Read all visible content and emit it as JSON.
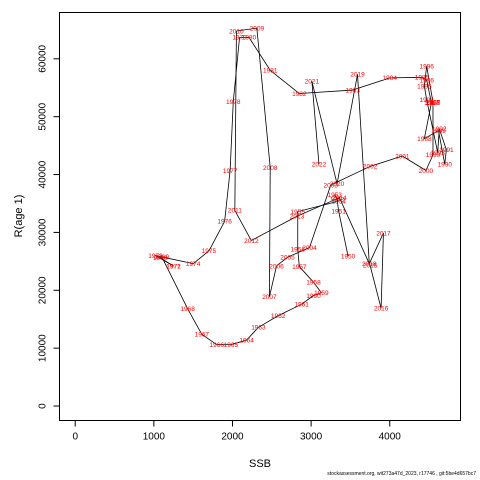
{
  "chart_data": {
    "type": "line",
    "xlabel": "SSB",
    "ylabel": "R(age 1)",
    "xlim": [
      -200,
      4900
    ],
    "ylim": [
      -2500,
      68000
    ],
    "xticks": [
      0,
      1000,
      2000,
      3000,
      4000
    ],
    "yticks": [
      0,
      10000,
      20000,
      30000,
      40000,
      50000,
      60000
    ],
    "grid": false,
    "point_labels_color": "#ff0000",
    "line_color": "#000000",
    "points": [
      {
        "label": "1950",
        "x": 3470,
        "y": 25900
      },
      {
        "label": "1951",
        "x": 3350,
        "y": 33700
      },
      {
        "label": "1952",
        "x": 3330,
        "y": 35700
      },
      {
        "label": "1953",
        "x": 3300,
        "y": 36500
      },
      {
        "label": "1954",
        "x": 3350,
        "y": 35400
      },
      {
        "label": "1955",
        "x": 2830,
        "y": 33600
      },
      {
        "label": "1956",
        "x": 2830,
        "y": 27100
      },
      {
        "label": "1957",
        "x": 2850,
        "y": 24100
      },
      {
        "label": "1958",
        "x": 3030,
        "y": 21400
      },
      {
        "label": "1959",
        "x": 3130,
        "y": 19600
      },
      {
        "label": "1960",
        "x": 3030,
        "y": 19100
      },
      {
        "label": "1961",
        "x": 2880,
        "y": 17600
      },
      {
        "label": "1962",
        "x": 2580,
        "y": 15600
      },
      {
        "label": "1963",
        "x": 2330,
        "y": 13600
      },
      {
        "label": "1964",
        "x": 2180,
        "y": 11400
      },
      {
        "label": "1965",
        "x": 1980,
        "y": 10600
      },
      {
        "label": "1966",
        "x": 1800,
        "y": 10600
      },
      {
        "label": "1967",
        "x": 1610,
        "y": 12400
      },
      {
        "label": "1968",
        "x": 1430,
        "y": 16800
      },
      {
        "label": "1969",
        "x": 1100,
        "y": 25800
      },
      {
        "label": "1970",
        "x": 1080,
        "y": 25600
      },
      {
        "label": "1971",
        "x": 1250,
        "y": 24200
      },
      {
        "label": "1972",
        "x": 1250,
        "y": 24200
      },
      {
        "label": "1973",
        "x": 1020,
        "y": 26000
      },
      {
        "label": "1974",
        "x": 1500,
        "y": 24600
      },
      {
        "label": "1975",
        "x": 1700,
        "y": 26800
      },
      {
        "label": "1976",
        "x": 1900,
        "y": 31900
      },
      {
        "label": "1977",
        "x": 1970,
        "y": 40700
      },
      {
        "label": "1978",
        "x": 2010,
        "y": 52600
      },
      {
        "label": "1979",
        "x": 2090,
        "y": 63700
      },
      {
        "label": "1980",
        "x": 2210,
        "y": 63700
      },
      {
        "label": "1981",
        "x": 2480,
        "y": 58000
      },
      {
        "label": "1982",
        "x": 2850,
        "y": 54000
      },
      {
        "label": "1983",
        "x": 3530,
        "y": 54600
      },
      {
        "label": "1984",
        "x": 4000,
        "y": 56700
      },
      {
        "label": "1985",
        "x": 4410,
        "y": 56800
      },
      {
        "label": "1986",
        "x": 4470,
        "y": 56300
      },
      {
        "label": "1987",
        "x": 4530,
        "y": 52400
      },
      {
        "label": "1988",
        "x": 4440,
        "y": 46200
      },
      {
        "label": "1989",
        "x": 4620,
        "y": 47600
      },
      {
        "label": "1990",
        "x": 4700,
        "y": 41800
      },
      {
        "label": "1991",
        "x": 4720,
        "y": 44300
      },
      {
        "label": "1992",
        "x": 4630,
        "y": 47900
      },
      {
        "label": "1993",
        "x": 4610,
        "y": 43800
      },
      {
        "label": "1994",
        "x": 4470,
        "y": 52900
      },
      {
        "label": "1995",
        "x": 4440,
        "y": 55300
      },
      {
        "label": "1996",
        "x": 4470,
        "y": 58700
      },
      {
        "label": "1997",
        "x": 4550,
        "y": 52500
      },
      {
        "label": "1998",
        "x": 4550,
        "y": 52400
      },
      {
        "label": "1999",
        "x": 4550,
        "y": 43400
      },
      {
        "label": "2000",
        "x": 4460,
        "y": 40700
      },
      {
        "label": "2001",
        "x": 4160,
        "y": 43200
      },
      {
        "label": "2002",
        "x": 3750,
        "y": 41400
      },
      {
        "label": "2003",
        "x": 3250,
        "y": 38200
      },
      {
        "label": "2004",
        "x": 2980,
        "y": 27400
      },
      {
        "label": "2005",
        "x": 2700,
        "y": 25700
      },
      {
        "label": "2006",
        "x": 2560,
        "y": 24200
      },
      {
        "label": "2007",
        "x": 2470,
        "y": 18900
      },
      {
        "label": "2008",
        "x": 2480,
        "y": 41200
      },
      {
        "label": "2009",
        "x": 2310,
        "y": 65300
      },
      {
        "label": "2010",
        "x": 2050,
        "y": 64800
      },
      {
        "label": "2011",
        "x": 2030,
        "y": 33800
      },
      {
        "label": "2012",
        "x": 2240,
        "y": 28600
      },
      {
        "label": "2013",
        "x": 2820,
        "y": 32800
      },
      {
        "label": "2014",
        "x": 3360,
        "y": 36000
      },
      {
        "label": "2015",
        "x": 3750,
        "y": 24300
      },
      {
        "label": "2016",
        "x": 3890,
        "y": 16900
      },
      {
        "label": "2017",
        "x": 3920,
        "y": 29900
      },
      {
        "label": "2018",
        "x": 3740,
        "y": 24600
      },
      {
        "label": "2019",
        "x": 3590,
        "y": 57300
      },
      {
        "label": "2020",
        "x": 3330,
        "y": 38400
      },
      {
        "label": "2021",
        "x": 3010,
        "y": 56100
      },
      {
        "label": "2022",
        "x": 3100,
        "y": 41800
      }
    ]
  },
  "footer_text": "stockassessment.org, wit273a47d_2023, r17746 , git:5be4d657bc7"
}
